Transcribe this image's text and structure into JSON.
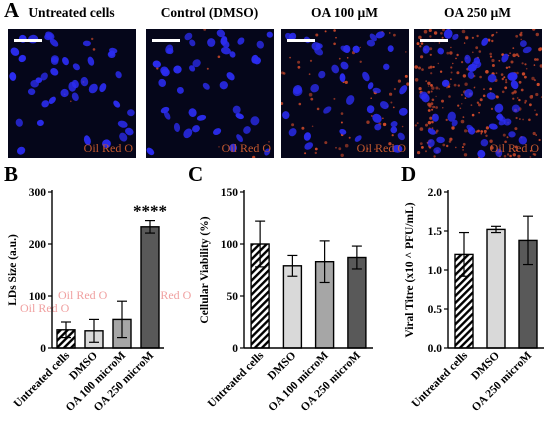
{
  "micrographs": {
    "panel_letter": "A",
    "stain_label": "Oil Red O",
    "titles": [
      "Untreated cells",
      "Control (DMSO)",
      "OA 100 µM",
      "OA 250 µM"
    ],
    "colors": {
      "background": "#05061a",
      "nuclei": "#2b2cf0",
      "lipid": "#d04a2a"
    },
    "lipid_density": [
      0.02,
      0.03,
      0.25,
      1.0
    ]
  },
  "chart_data": [
    {
      "panel_letter": "B",
      "type": "bar",
      "title": "",
      "ylabel": "LDs Size (a.u.)",
      "xlabel": "",
      "ylim": [
        0,
        300
      ],
      "yticks": [
        0,
        100,
        200,
        300
      ],
      "categories": [
        "Untreated cells",
        "DMSO",
        "OA 100 microM",
        "OA 250 microM"
      ],
      "values": [
        35,
        33,
        55,
        233
      ],
      "errors": [
        15,
        22,
        35,
        12
      ],
      "fills": [
        "hatch",
        "#d9d9d9",
        "#a6a6a6",
        "#595959"
      ],
      "annotations": [
        {
          "category": "OA 250 microM",
          "text": "****"
        }
      ],
      "overlay_text": [
        "Oil Red O",
        "Oil Red O",
        "Oil Red O"
      ]
    },
    {
      "panel_letter": "C",
      "type": "bar",
      "title": "",
      "ylabel": "Cellular Viability (%)",
      "xlabel": "",
      "ylim": [
        0,
        150
      ],
      "yticks": [
        0,
        50,
        100,
        150
      ],
      "categories": [
        "Untreated cells",
        "DMSO",
        "OA 100 microM",
        "OA 250 microM"
      ],
      "values": [
        100,
        79,
        83,
        87
      ],
      "errors": [
        22,
        10,
        20,
        11
      ],
      "fills": [
        "hatch",
        "#d9d9d9",
        "#a6a6a6",
        "#595959"
      ],
      "annotations": [],
      "overlay_text": []
    },
    {
      "panel_letter": "D",
      "type": "bar",
      "title": "",
      "ylabel": "Viral Titre (x10 ^ PFU/mL)",
      "xlabel": "",
      "ylim": [
        0,
        2.0
      ],
      "yticks": [
        "0.0",
        "0.5",
        "1.0",
        "1.5",
        "2.0"
      ],
      "categories": [
        "Untreated cells",
        "DMSO",
        "OA 250 microM"
      ],
      "values": [
        1.2,
        1.52,
        1.38
      ],
      "errors": [
        0.28,
        0.04,
        0.31
      ],
      "fills": [
        "hatch",
        "#d9d9d9",
        "#595959"
      ],
      "annotations": [],
      "overlay_text": []
    }
  ]
}
